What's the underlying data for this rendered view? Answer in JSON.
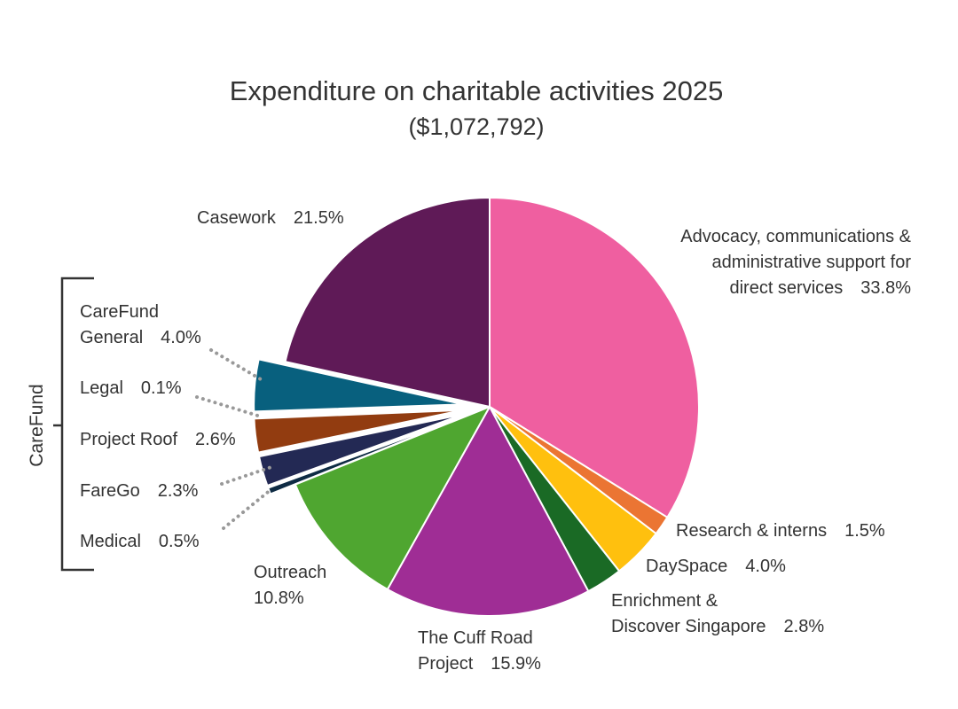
{
  "chart_data": {
    "type": "pie",
    "title": "Expenditure on charitable activities 2025",
    "subtitle": "($1,072,792)",
    "group_label": "CareFund",
    "slices": [
      {
        "key": "advocacy",
        "lines": [
          "Advocacy, communications &",
          "administrative support for",
          "direct services"
        ],
        "percent_text": "33.8%",
        "value": 33.8,
        "color": "#EF5FA0",
        "exploded": false
      },
      {
        "key": "research",
        "lines": [
          "Research & interns"
        ],
        "percent_text": "1.5%",
        "value": 1.5,
        "color": "#EB7533",
        "exploded": false
      },
      {
        "key": "dayspace",
        "lines": [
          "DaySpace"
        ],
        "percent_text": "4.0%",
        "value": 4.0,
        "color": "#FFC00E",
        "exploded": false
      },
      {
        "key": "enrichment",
        "lines": [
          "Enrichment &",
          "Discover Singapore"
        ],
        "percent_text": "2.8%",
        "value": 2.8,
        "color": "#1A6A25",
        "exploded": false
      },
      {
        "key": "cuffroad",
        "lines": [
          "The Cuff Road",
          "Project"
        ],
        "percent_text": "15.9%",
        "value": 15.9,
        "color": "#9F2D95",
        "exploded": false
      },
      {
        "key": "outreach",
        "lines": [
          "Outreach"
        ],
        "percent_text": "10.8%",
        "percent_newline": true,
        "value": 10.8,
        "color": "#4FA630",
        "exploded": false
      },
      {
        "key": "medical",
        "lines": [
          "Medical"
        ],
        "percent_text": "0.5%",
        "value": 0.5,
        "color": "#0E2B44",
        "exploded": true
      },
      {
        "key": "farego",
        "lines": [
          "FareGo"
        ],
        "percent_text": "2.3%",
        "value": 2.3,
        "color": "#232954",
        "exploded": true
      },
      {
        "key": "projectroof",
        "lines": [
          "Project Roof"
        ],
        "percent_text": "2.6%",
        "value": 2.6,
        "color": "#923C10",
        "exploded": true
      },
      {
        "key": "legal",
        "lines": [
          "Legal"
        ],
        "percent_text": "0.1%",
        "value": 0.1,
        "color": "#6B2A12",
        "exploded": true
      },
      {
        "key": "carefundgeneral",
        "lines": [
          "CareFund",
          "General"
        ],
        "percent_text": "4.0%",
        "value": 4.0,
        "color": "#08607E",
        "exploded": true
      },
      {
        "key": "casework",
        "lines": [
          "Casework"
        ],
        "percent_text": "21.5%",
        "value": 21.5,
        "color": "#5F1A57",
        "exploded": false
      }
    ]
  }
}
